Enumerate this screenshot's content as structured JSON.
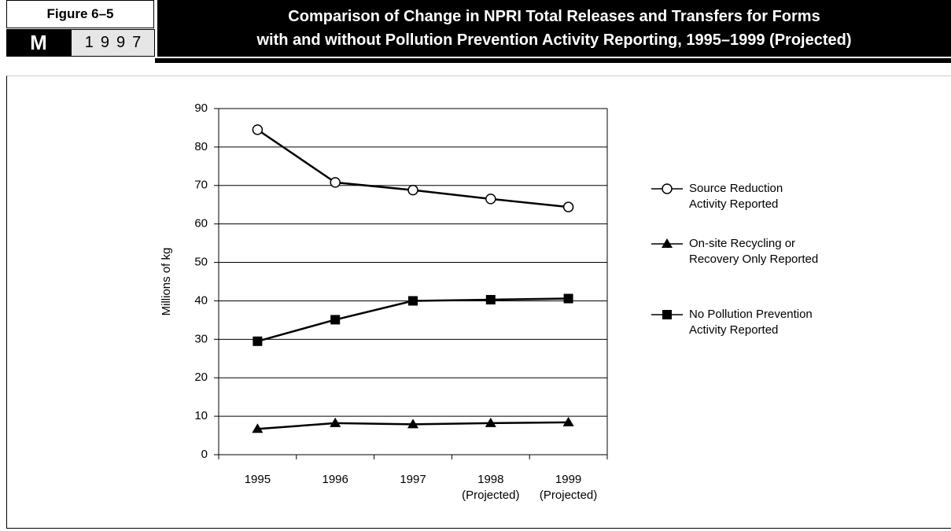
{
  "header": {
    "figure": "Figure 6–5",
    "label": "M",
    "year": "1997"
  },
  "chart_data": {
    "type": "line",
    "title": [
      "Comparison of Change in NPRI Total Releases and Transfers for Forms",
      "with and without Pollution Prevention Activity Reporting, 1995–1999 (Projected)"
    ],
    "y_label": "Millions of kg",
    "categories": [
      "1995",
      "1996",
      "1997",
      "1998 (Projected)",
      "1999 (Projected)"
    ],
    "series": [
      {
        "name": "Source Reduction Activity Reported",
        "color": "#000000",
        "marker": "circle",
        "values": [
          84.5,
          70.8,
          68.8,
          66.5,
          64.4
        ]
      },
      {
        "name": "On-site Recycling or Recovery Only Reported",
        "color": "#000000",
        "marker": "triangle",
        "values": [
          6.7,
          8.2,
          7.9,
          8.2,
          8.4
        ]
      },
      {
        "name": "No Pollution Prevention Activity Reported",
        "color": "#000000",
        "marker": "square",
        "values": [
          29.5,
          35.1,
          40.0,
          40.3,
          40.6
        ]
      }
    ],
    "ylim": [
      0,
      90
    ],
    "yticks": [
      0,
      10,
      20,
      30,
      40,
      50,
      60,
      70,
      80,
      90
    ],
    "grid": true,
    "legend": "right"
  }
}
